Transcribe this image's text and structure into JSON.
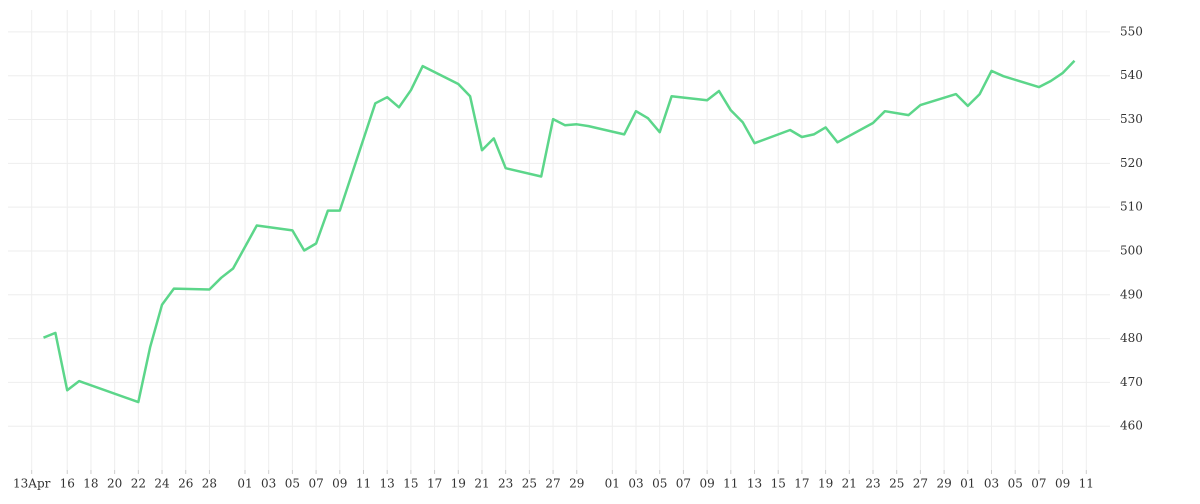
{
  "chart_data": {
    "type": "line",
    "color": "#5cd68a",
    "grid": true,
    "xlim": [
      -2,
      91
    ],
    "ylim": [
      450,
      555
    ],
    "yticks": [
      460,
      470,
      480,
      490,
      500,
      510,
      520,
      530,
      540,
      550
    ],
    "xticks": [
      {
        "value": 0,
        "label": "13Apr"
      },
      {
        "value": 3,
        "label": "16"
      },
      {
        "value": 5,
        "label": "18"
      },
      {
        "value": 7,
        "label": "20"
      },
      {
        "value": 9,
        "label": "22"
      },
      {
        "value": 11,
        "label": "24"
      },
      {
        "value": 13,
        "label": "26"
      },
      {
        "value": 15,
        "label": "28"
      },
      {
        "value": 18,
        "label": "01"
      },
      {
        "value": 20,
        "label": "03"
      },
      {
        "value": 22,
        "label": "05"
      },
      {
        "value": 24,
        "label": "07"
      },
      {
        "value": 26,
        "label": "09"
      },
      {
        "value": 28,
        "label": "11"
      },
      {
        "value": 30,
        "label": "13"
      },
      {
        "value": 32,
        "label": "15"
      },
      {
        "value": 34,
        "label": "17"
      },
      {
        "value": 36,
        "label": "19"
      },
      {
        "value": 38,
        "label": "21"
      },
      {
        "value": 40,
        "label": "23"
      },
      {
        "value": 42,
        "label": "25"
      },
      {
        "value": 44,
        "label": "27"
      },
      {
        "value": 46,
        "label": "29"
      },
      {
        "value": 49,
        "label": "01"
      },
      {
        "value": 51,
        "label": "03"
      },
      {
        "value": 53,
        "label": "05"
      },
      {
        "value": 55,
        "label": "07"
      },
      {
        "value": 57,
        "label": "09"
      },
      {
        "value": 59,
        "label": "11"
      },
      {
        "value": 61,
        "label": "13"
      },
      {
        "value": 63,
        "label": "15"
      },
      {
        "value": 65,
        "label": "17"
      },
      {
        "value": 67,
        "label": "19"
      },
      {
        "value": 69,
        "label": "21"
      },
      {
        "value": 71,
        "label": "23"
      },
      {
        "value": 73,
        "label": "25"
      },
      {
        "value": 75,
        "label": "27"
      },
      {
        "value": 77,
        "label": "29"
      },
      {
        "value": 79,
        "label": "01"
      },
      {
        "value": 81,
        "label": "03"
      },
      {
        "value": 83,
        "label": "05"
      },
      {
        "value": 85,
        "label": "07"
      },
      {
        "value": 87,
        "label": "09"
      },
      {
        "value": 89,
        "label": "11"
      }
    ],
    "x": [
      1,
      2,
      3,
      4,
      9,
      10,
      11,
      12,
      15,
      16,
      17,
      19,
      22,
      23,
      24,
      25,
      26,
      29,
      30,
      31,
      32,
      33,
      36,
      37,
      38,
      39,
      40,
      43,
      44,
      45,
      46,
      47,
      50,
      51,
      52,
      53,
      54,
      57,
      58,
      59,
      60,
      61,
      64,
      65,
      66,
      67,
      68,
      71,
      72,
      74,
      75,
      78,
      79,
      80,
      81,
      82,
      85,
      86,
      87,
      88
    ],
    "values": [
      480.2,
      481.3,
      468.2,
      470.3,
      465.5,
      478.1,
      487.7,
      491.4,
      491.2,
      493.9,
      496.0,
      505.8,
      504.7,
      500.1,
      501.7,
      509.2,
      509.2,
      533.7,
      535.1,
      532.8,
      536.7,
      542.2,
      538.1,
      535.3,
      523.0,
      525.7,
      518.9,
      517.0,
      530.1,
      528.7,
      528.9,
      528.5,
      526.6,
      531.9,
      530.3,
      527.1,
      535.3,
      534.4,
      536.5,
      532.1,
      529.4,
      524.6,
      527.6,
      526.0,
      526.6,
      528.2,
      524.8,
      529.2,
      531.9,
      531.0,
      533.3,
      535.8,
      533.1,
      535.8,
      541.1,
      539.9,
      537.4,
      538.8,
      540.6,
      543.4
    ]
  }
}
